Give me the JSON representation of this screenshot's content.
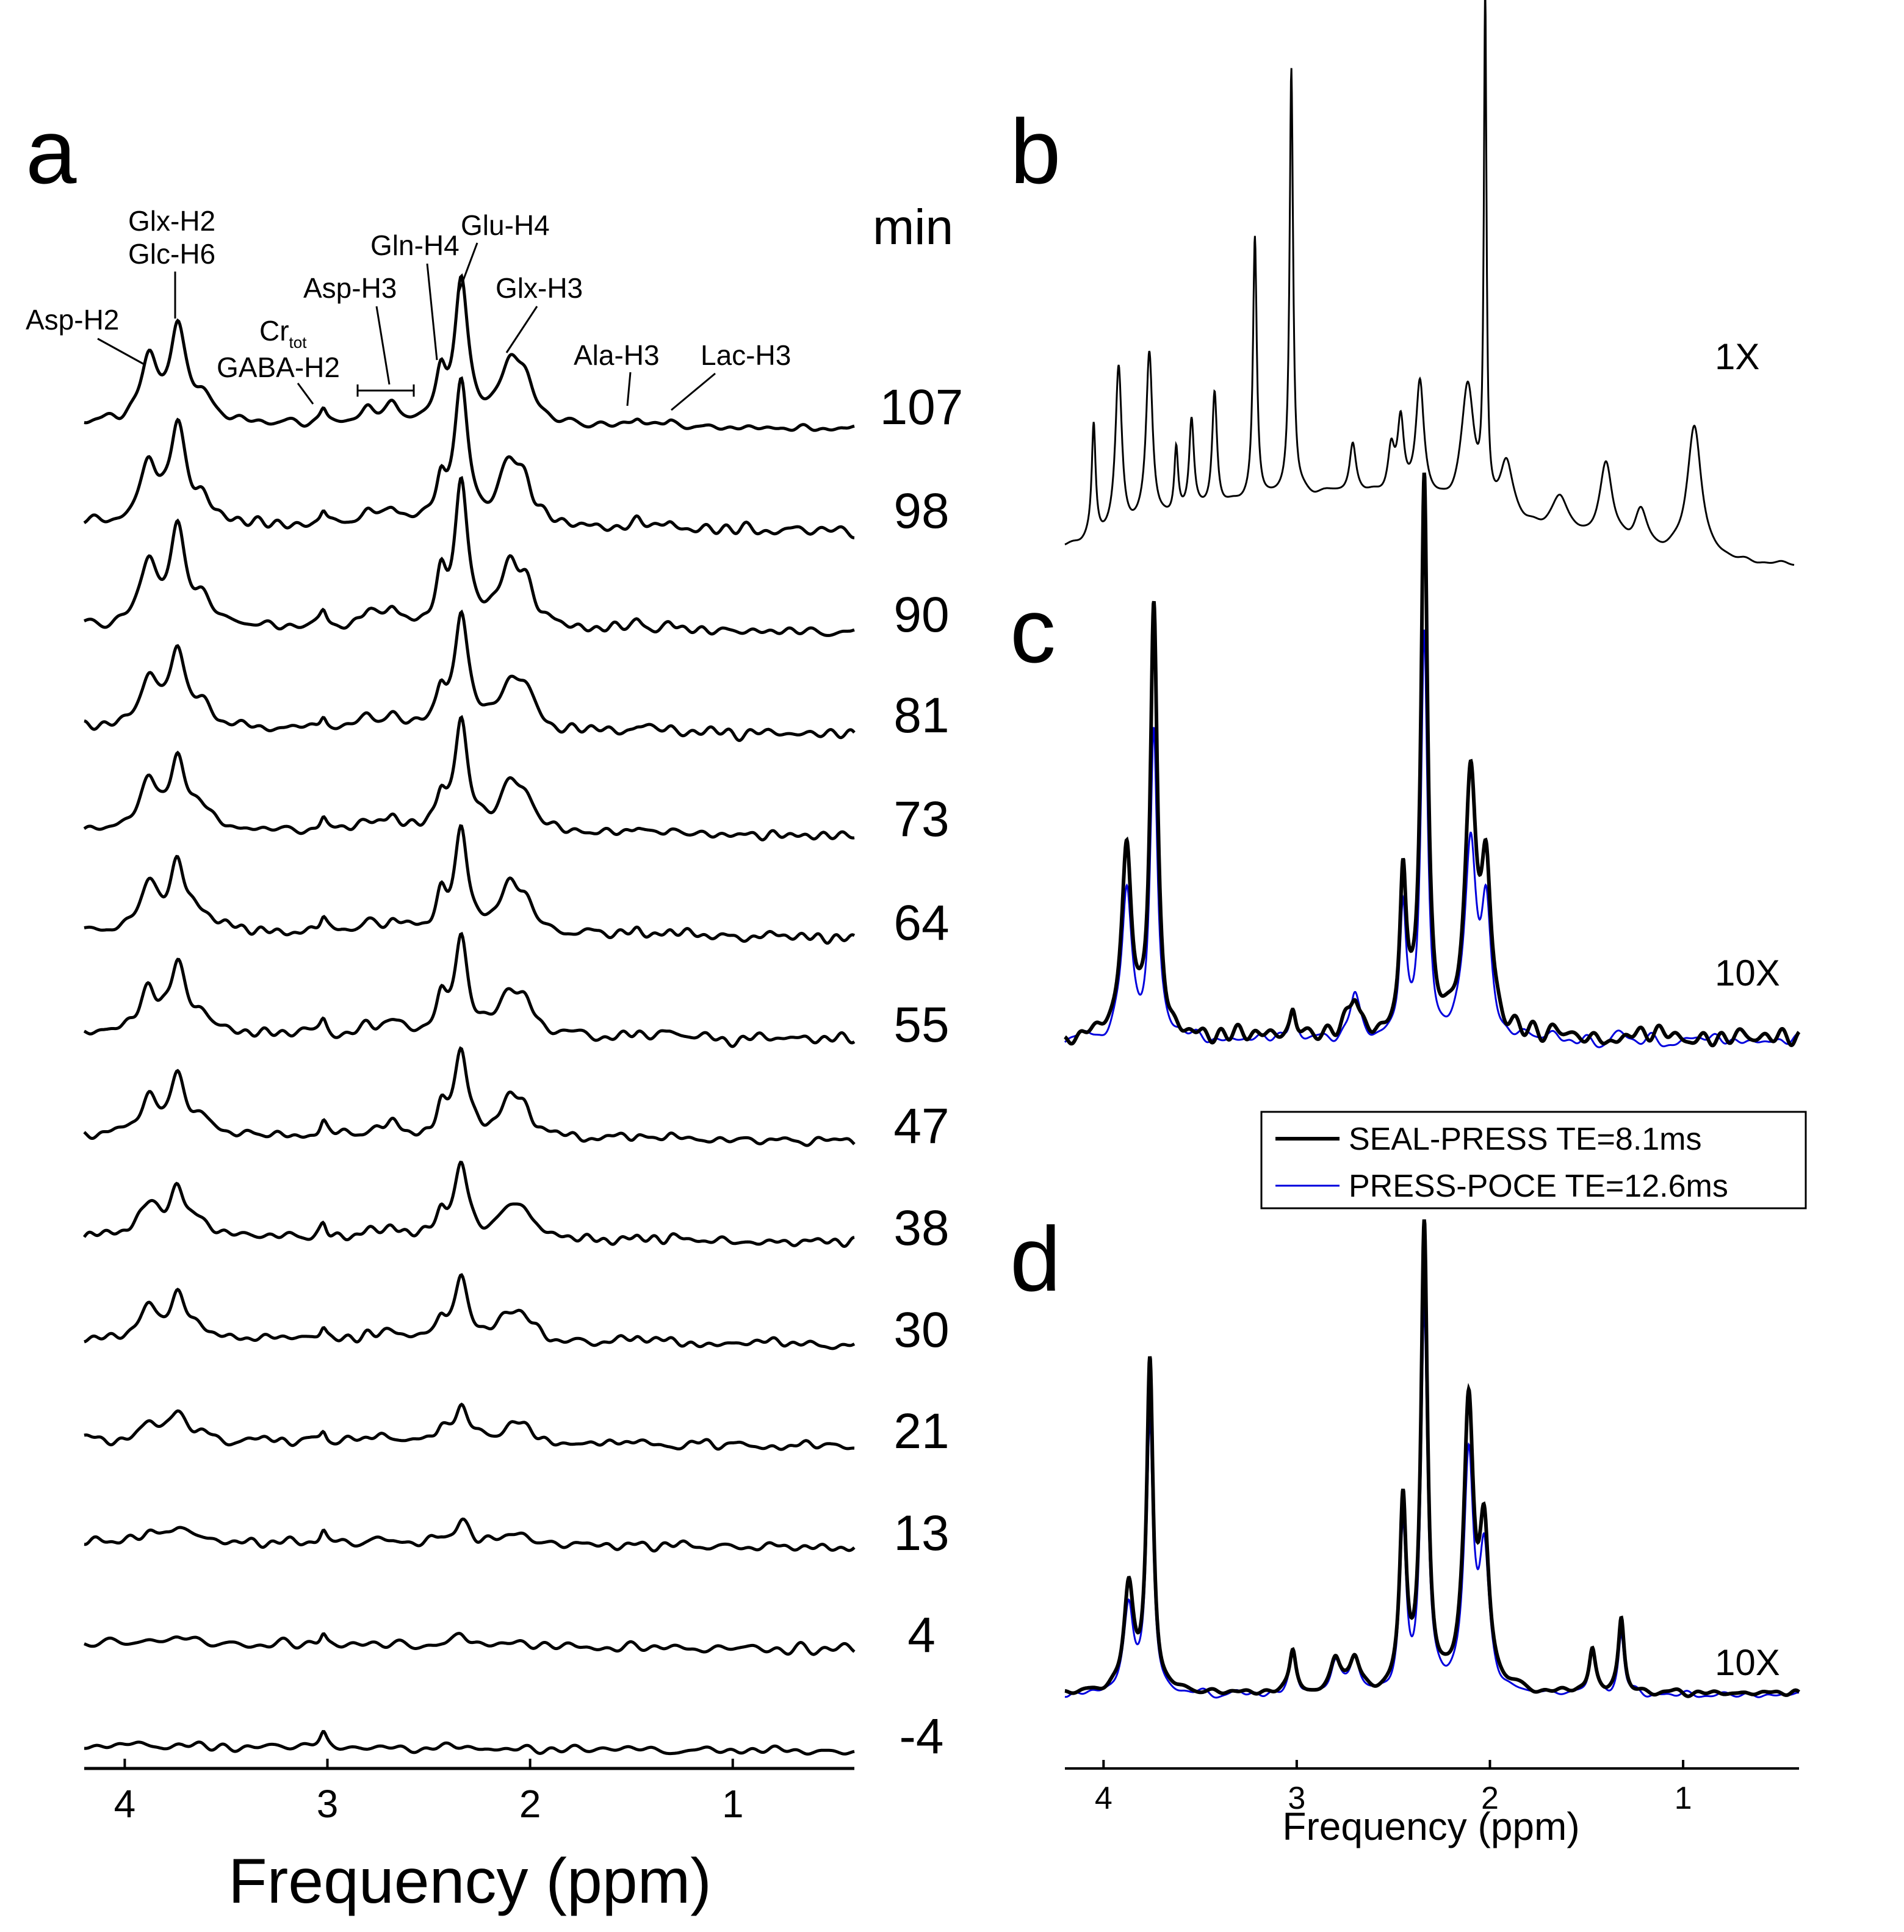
{
  "colors": {
    "seal_press": "#000000",
    "press_poce": "#0000dd",
    "axis": "#000000"
  },
  "panels": {
    "a": {
      "letter": "a",
      "time_unit": "min",
      "xlabel": "Frequency (ppm)",
      "xticks": [
        "4",
        "3",
        "2",
        "1"
      ]
    },
    "b": {
      "letter": "b",
      "scale": "1X"
    },
    "c": {
      "letter": "c",
      "scale": "10X"
    },
    "d": {
      "letter": "d",
      "scale": "10X",
      "xlabel": "Frequency (ppm)",
      "xticks": [
        "4",
        "3",
        "2",
        "1"
      ]
    }
  },
  "annotations": {
    "asp_h2": "Asp-H2",
    "glx_h2": "Glx-H2",
    "glc_h6": "Glc-H6",
    "cr_tot_base": "Cr",
    "cr_tot_sub": "tot",
    "gaba_h2": "GABA-H2",
    "asp_h3": "Asp-H3",
    "gln_h4": "Gln-H4",
    "glu_h4": "Glu-H4",
    "glx_h3": "Glx-H3",
    "ala_h3": "Ala-H3",
    "lac_h3": "Lac-H3"
  },
  "legend": {
    "seal_press": "SEAL-PRESS TE=8.1ms",
    "press_poce": "PRESS-POCE TE=12.6ms"
  },
  "chart_data": [
    {
      "panel": "a",
      "type": "line",
      "title": "",
      "xlabel": "Frequency (ppm)",
      "xlim": [
        4.2,
        0.4
      ],
      "xticks": [
        4,
        3,
        2,
        1
      ],
      "time_points_min": [
        107,
        98,
        90,
        81,
        73,
        64,
        55,
        47,
        38,
        30,
        21,
        13,
        4,
        -4
      ],
      "time_labels": [
        "107",
        "98",
        "90",
        "81",
        "73",
        "64",
        "55",
        "47",
        "38",
        "30",
        "21",
        "13",
        "4",
        "-4"
      ],
      "peak_ppm": {
        "Asp-H2": 3.88,
        "Glx-H2": 3.74,
        "Cr_tot/GABA-H2": 3.02,
        "Asp-H3": 2.68,
        "Gln-H4": 2.44,
        "Glu-H4": 2.34,
        "Glx-H3": 2.1,
        "Ala-H3": 1.47,
        "Lac-H3": 1.31
      },
      "relative_amplitude": [
        1.0,
        1.0,
        1.0,
        0.82,
        0.77,
        0.73,
        0.7,
        0.6,
        0.53,
        0.45,
        0.28,
        0.16,
        0.07,
        0.0
      ]
    },
    {
      "panel": "b",
      "type": "line",
      "xlim": [
        4.2,
        0.4
      ],
      "scale": "1X"
    },
    {
      "panel": "c",
      "type": "line",
      "xlim": [
        4.2,
        0.4
      ],
      "scale": "10X",
      "series": [
        {
          "name": "SEAL-PRESS TE=8.1ms"
        },
        {
          "name": "PRESS-POCE TE=12.6ms"
        }
      ]
    },
    {
      "panel": "d",
      "type": "line",
      "xlim": [
        4.2,
        0.4
      ],
      "scale": "10X",
      "xlabel": "Frequency (ppm)",
      "xticks": [
        4,
        3,
        2,
        1
      ],
      "series": [
        {
          "name": "SEAL-PRESS TE=8.1ms"
        },
        {
          "name": "PRESS-POCE TE=12.6ms"
        }
      ]
    }
  ]
}
